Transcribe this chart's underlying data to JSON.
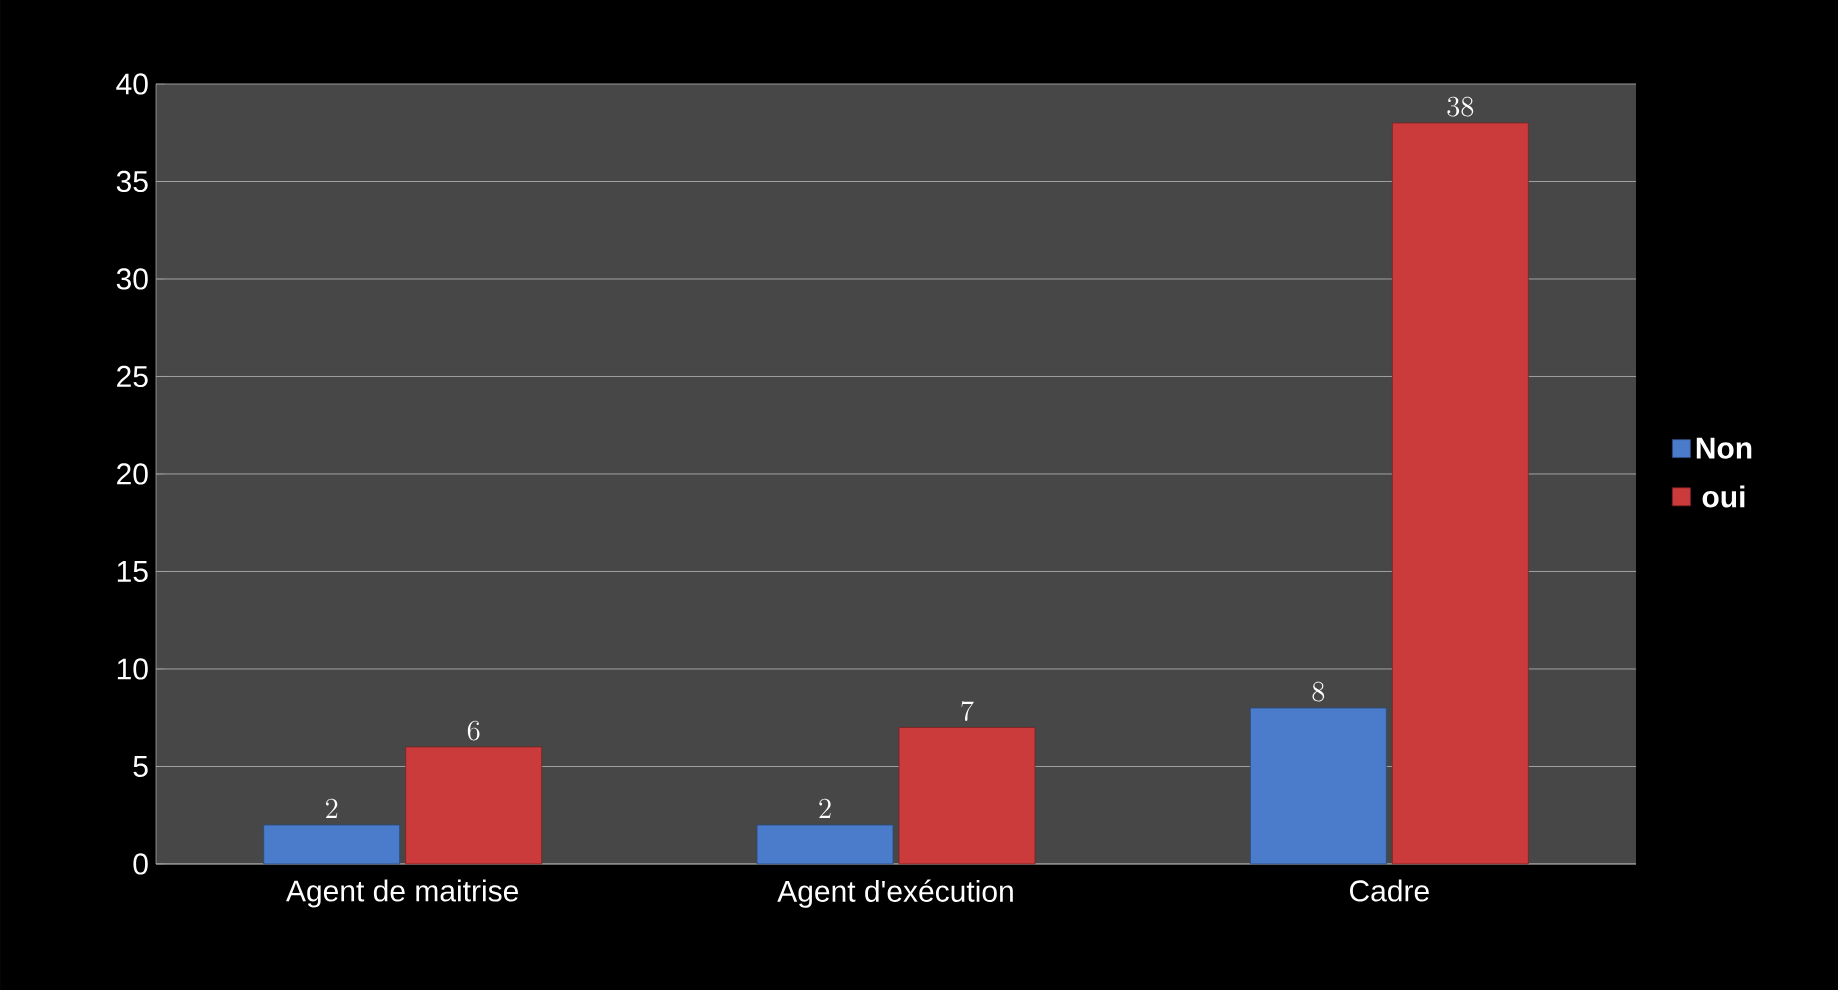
{
  "chart_data": {
    "type": "bar",
    "categories": [
      "Agent de maitrise",
      "Agent d'exécution",
      "Cadre"
    ],
    "series": [
      {
        "name": "Non",
        "color": "#4a7ccb",
        "values": [
          2,
          2,
          8
        ]
      },
      {
        "name": "oui",
        "color": "#cc3b3b",
        "values": [
          6,
          7,
          38
        ]
      }
    ],
    "ylim": [
      0,
      40
    ],
    "yticks": [
      0,
      5,
      10,
      15,
      20,
      25,
      30,
      35,
      40
    ],
    "grid": "y",
    "legend": "right",
    "data_labels": true
  }
}
